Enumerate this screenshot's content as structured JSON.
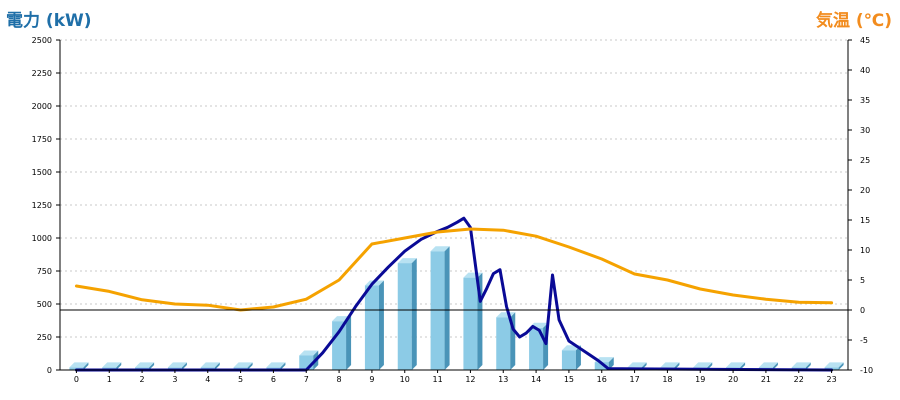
{
  "chart_data": {
    "type": "bar",
    "y_left_label": "電力 (kW)",
    "y_right_label": "気温 (℃)",
    "categories": [
      "0",
      "1",
      "2",
      "3",
      "4",
      "5",
      "6",
      "7",
      "8",
      "9",
      "10",
      "11",
      "12",
      "13",
      "14",
      "15",
      "16",
      "17",
      "18",
      "19",
      "20",
      "21",
      "22",
      "23"
    ],
    "y_left_ticks": [
      "0",
      "250",
      "500",
      "750",
      "1000",
      "1250",
      "1500",
      "1750",
      "2000",
      "2250",
      "2500"
    ],
    "y_right_ticks": [
      "-10",
      "-5",
      "0",
      "5",
      "10",
      "15",
      "20",
      "25",
      "30",
      "35",
      "40",
      "45"
    ],
    "y_left_lim": [
      0,
      2500
    ],
    "y_right_lim": [
      -10,
      45
    ],
    "grid": true,
    "colors": {
      "left_axis": "#1f6fa8",
      "right_axis": "#f28c1e",
      "bar": "#8ccbe6",
      "bar_side": "#4a94b8",
      "bar_top": "#b8e2f2",
      "power_line": "#0a0a96",
      "temp_line": "#f5a200"
    },
    "series": [
      {
        "type": "bar",
        "axis": "left",
        "values": [
          20,
          20,
          20,
          20,
          20,
          20,
          20,
          110,
          370,
          640,
          810,
          900,
          700,
          400,
          320,
          150,
          60,
          20,
          20,
          20,
          20,
          20,
          20,
          20
        ]
      },
      {
        "type": "line",
        "axis": "left",
        "x": [
          0,
          7,
          7.5,
          8,
          8.5,
          9,
          9.5,
          10,
          10.5,
          11,
          11.3,
          11.6,
          11.8,
          12,
          12.3,
          12.5,
          12.7,
          12.9,
          13.1,
          13.3,
          13.5,
          13.7,
          13.9,
          14.1,
          14.3,
          14.5,
          14.7,
          15,
          15.3,
          15.6,
          15.9,
          16.2,
          23
        ],
        "y": [
          0,
          0,
          130,
          290,
          480,
          650,
          780,
          900,
          990,
          1050,
          1080,
          1120,
          1150,
          1080,
          520,
          620,
          730,
          760,
          480,
          310,
          250,
          280,
          330,
          300,
          200,
          720,
          380,
          220,
          170,
          120,
          70,
          10,
          0
        ]
      },
      {
        "type": "line",
        "axis": "right",
        "x": [
          0,
          1,
          2,
          3,
          4,
          5,
          6,
          7,
          8,
          9,
          10,
          11,
          12,
          13,
          14,
          15,
          16,
          17,
          18,
          19,
          20,
          21,
          22,
          23
        ],
        "y": [
          4,
          3.1,
          1.7,
          1,
          0.8,
          0,
          0.5,
          1.8,
          5,
          11,
          12,
          13,
          13.5,
          13.3,
          12.3,
          10.5,
          8.5,
          6,
          5,
          3.5,
          2.5,
          1.8,
          1.3,
          1.2
        ]
      }
    ]
  }
}
